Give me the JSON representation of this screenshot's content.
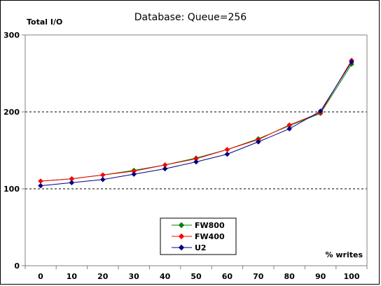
{
  "chart_data": {
    "type": "line",
    "title": "Database: Queue=256",
    "ylabel": "Total I/O",
    "xlabel": "% writes",
    "x": [
      0,
      10,
      20,
      30,
      40,
      50,
      60,
      70,
      80,
      90,
      100
    ],
    "xlim": [
      0,
      100
    ],
    "ylim": [
      0,
      300
    ],
    "yticks": [
      0,
      100,
      200,
      300
    ],
    "grid": "horizontal dashed at 100 and 200",
    "legend_position": "bottom-center",
    "series": [
      {
        "name": "FW800",
        "color": "#008000",
        "values": [
          110,
          113,
          118,
          124,
          131,
          140,
          151,
          165,
          182,
          198,
          262
        ]
      },
      {
        "name": "FW400",
        "color": "#ff0000",
        "values": [
          110,
          113,
          118,
          123,
          131,
          139,
          151,
          164,
          183,
          199,
          267
        ]
      },
      {
        "name": "U2",
        "color": "#000080",
        "values": [
          104,
          108,
          112,
          119,
          126,
          135,
          145,
          161,
          178,
          201,
          265
        ]
      }
    ]
  }
}
